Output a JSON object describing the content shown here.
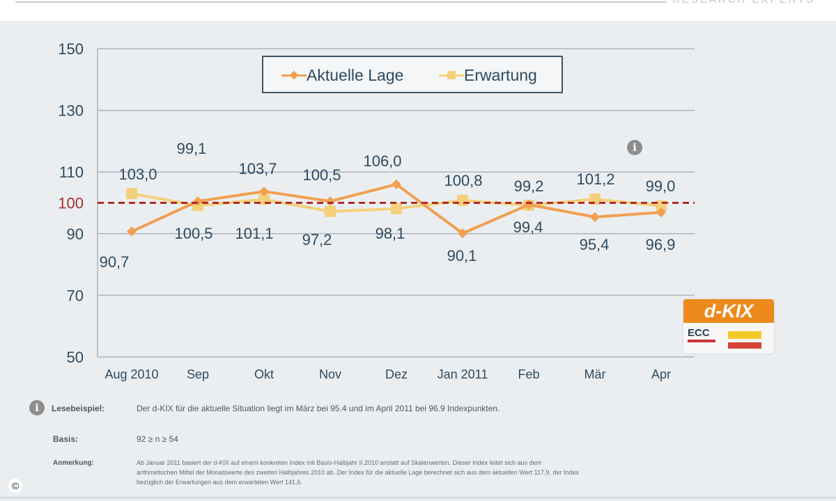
{
  "header": {
    "brand": "RESEARCH EXPERTS"
  },
  "chart_data": {
    "type": "line",
    "categories": [
      "Aug 2010",
      "Sep",
      "Okt",
      "Nov",
      "Dez",
      "Jan 2011",
      "Feb",
      "Mär",
      "Apr"
    ],
    "series": [
      {
        "name": "Aktuelle Lage",
        "color": "#f0a050",
        "values": [
          90.7,
          100.5,
          103.7,
          100.5,
          106.0,
          90.1,
          99.4,
          95.4,
          96.9
        ],
        "labels": [
          "90,7",
          "100,5",
          "103,7",
          "100,5",
          "106,0",
          "90,1",
          "99,4",
          "95,4",
          "96,9"
        ]
      },
      {
        "name": "Erwartung",
        "color": "#f5d07a",
        "values": [
          103.0,
          99.1,
          101.1,
          97.2,
          98.1,
          100.8,
          99.2,
          101.2,
          99.0
        ],
        "labels": [
          "103,0",
          "99,1",
          "101,1",
          "97,2",
          "98,1",
          "100,8",
          "99,2",
          "101,2",
          "99,0"
        ]
      }
    ],
    "yticks": [
      150,
      130,
      110,
      100,
      90,
      70,
      50
    ],
    "ylim": [
      50,
      150
    ],
    "reference_line": {
      "value": 100,
      "color": "#b02a2a",
      "style": "dashed"
    },
    "grid": true,
    "legend_position": "top-center"
  },
  "badge": {
    "title": "d-KIX",
    "ecc": "ECC"
  },
  "notes": {
    "lesebeispiel_label": "Lesebeispiel:",
    "lesebeispiel_text": "Der d-KIX für die aktuelle Situation liegt im März bei 95.4 und im April 2011 bei 96.9 Indexpunkten.",
    "basis_label": "Basis:",
    "basis_text": "92 ≥ n ≥ 54",
    "anmerkung_label": "Anmerkung:",
    "anmerkung_lines": [
      "Ab Januar 2011 basiert der d-KIX auf einem konkreten Index mit Basis-Halbjahr II.2010 anstatt auf Skalenwerten. Dieser Index leitet sich aus dem",
      "arithmetischen Mittel der Monatswerte des zweiten Halbjahres 2010 ab. Der Index für die aktuelle Lage berechnet sich aus dem aktuellen Wert 117,9, der Index",
      "bezüglich der Erwartungen aus dem erwarteten Wert 141,6."
    ]
  },
  "copyright": "©"
}
